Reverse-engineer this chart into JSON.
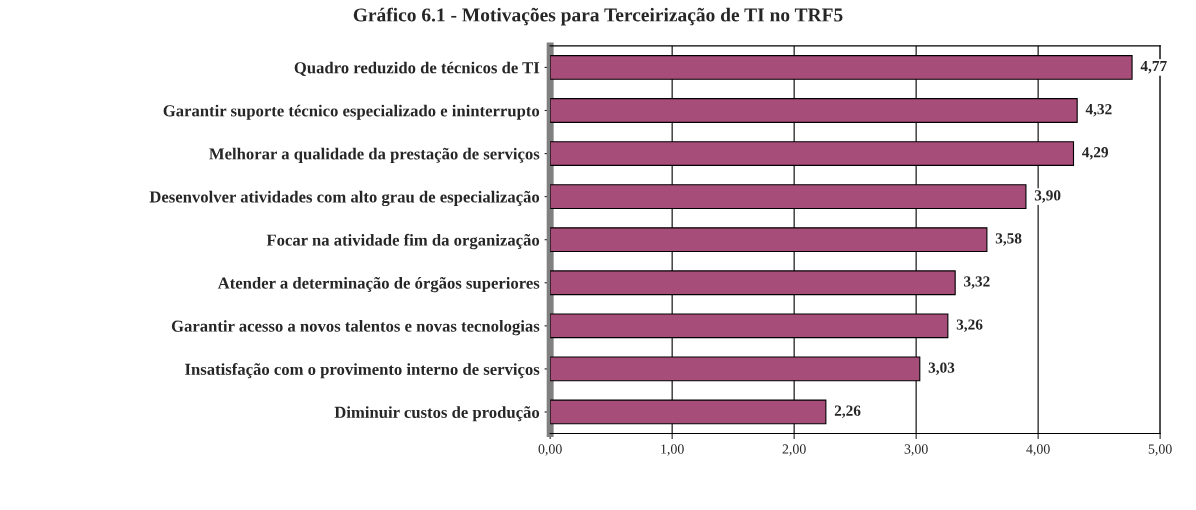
{
  "chart_data": {
    "type": "bar",
    "orientation": "horizontal",
    "title": "Gráfico 6.1 - Motivações para Terceirização de TI no TRF5",
    "categories": [
      "Quadro reduzido de técnicos de TI",
      "Garantir suporte técnico especializado e ininterrupto",
      "Melhorar a qualidade da prestação de serviços",
      "Desenvolver atividades com alto grau de especialização",
      "Focar na atividade fim da organização",
      "Atender a determinação de órgãos superiores",
      "Garantir acesso a novos talentos e novas tecnologias",
      "Insatisfação com o provimento interno de serviços",
      "Diminuir custos de produção"
    ],
    "values": [
      4.77,
      4.32,
      4.29,
      3.9,
      3.58,
      3.32,
      3.26,
      3.03,
      2.26
    ],
    "value_labels": [
      "4,77",
      "4,32",
      "4,29",
      "3,90",
      "3,58",
      "3,32",
      "3,26",
      "3,03",
      "2,26"
    ],
    "color": "#a64d79",
    "xlim": [
      0,
      5
    ],
    "xticks": [
      {
        "value": 0,
        "label": "0,00"
      },
      {
        "value": 1,
        "label": "1,00"
      },
      {
        "value": 2,
        "label": "2,00"
      },
      {
        "value": 3,
        "label": "3,00"
      },
      {
        "value": 4,
        "label": "4,00"
      },
      {
        "value": 5,
        "label": "5,00"
      }
    ],
    "grid": "x"
  }
}
